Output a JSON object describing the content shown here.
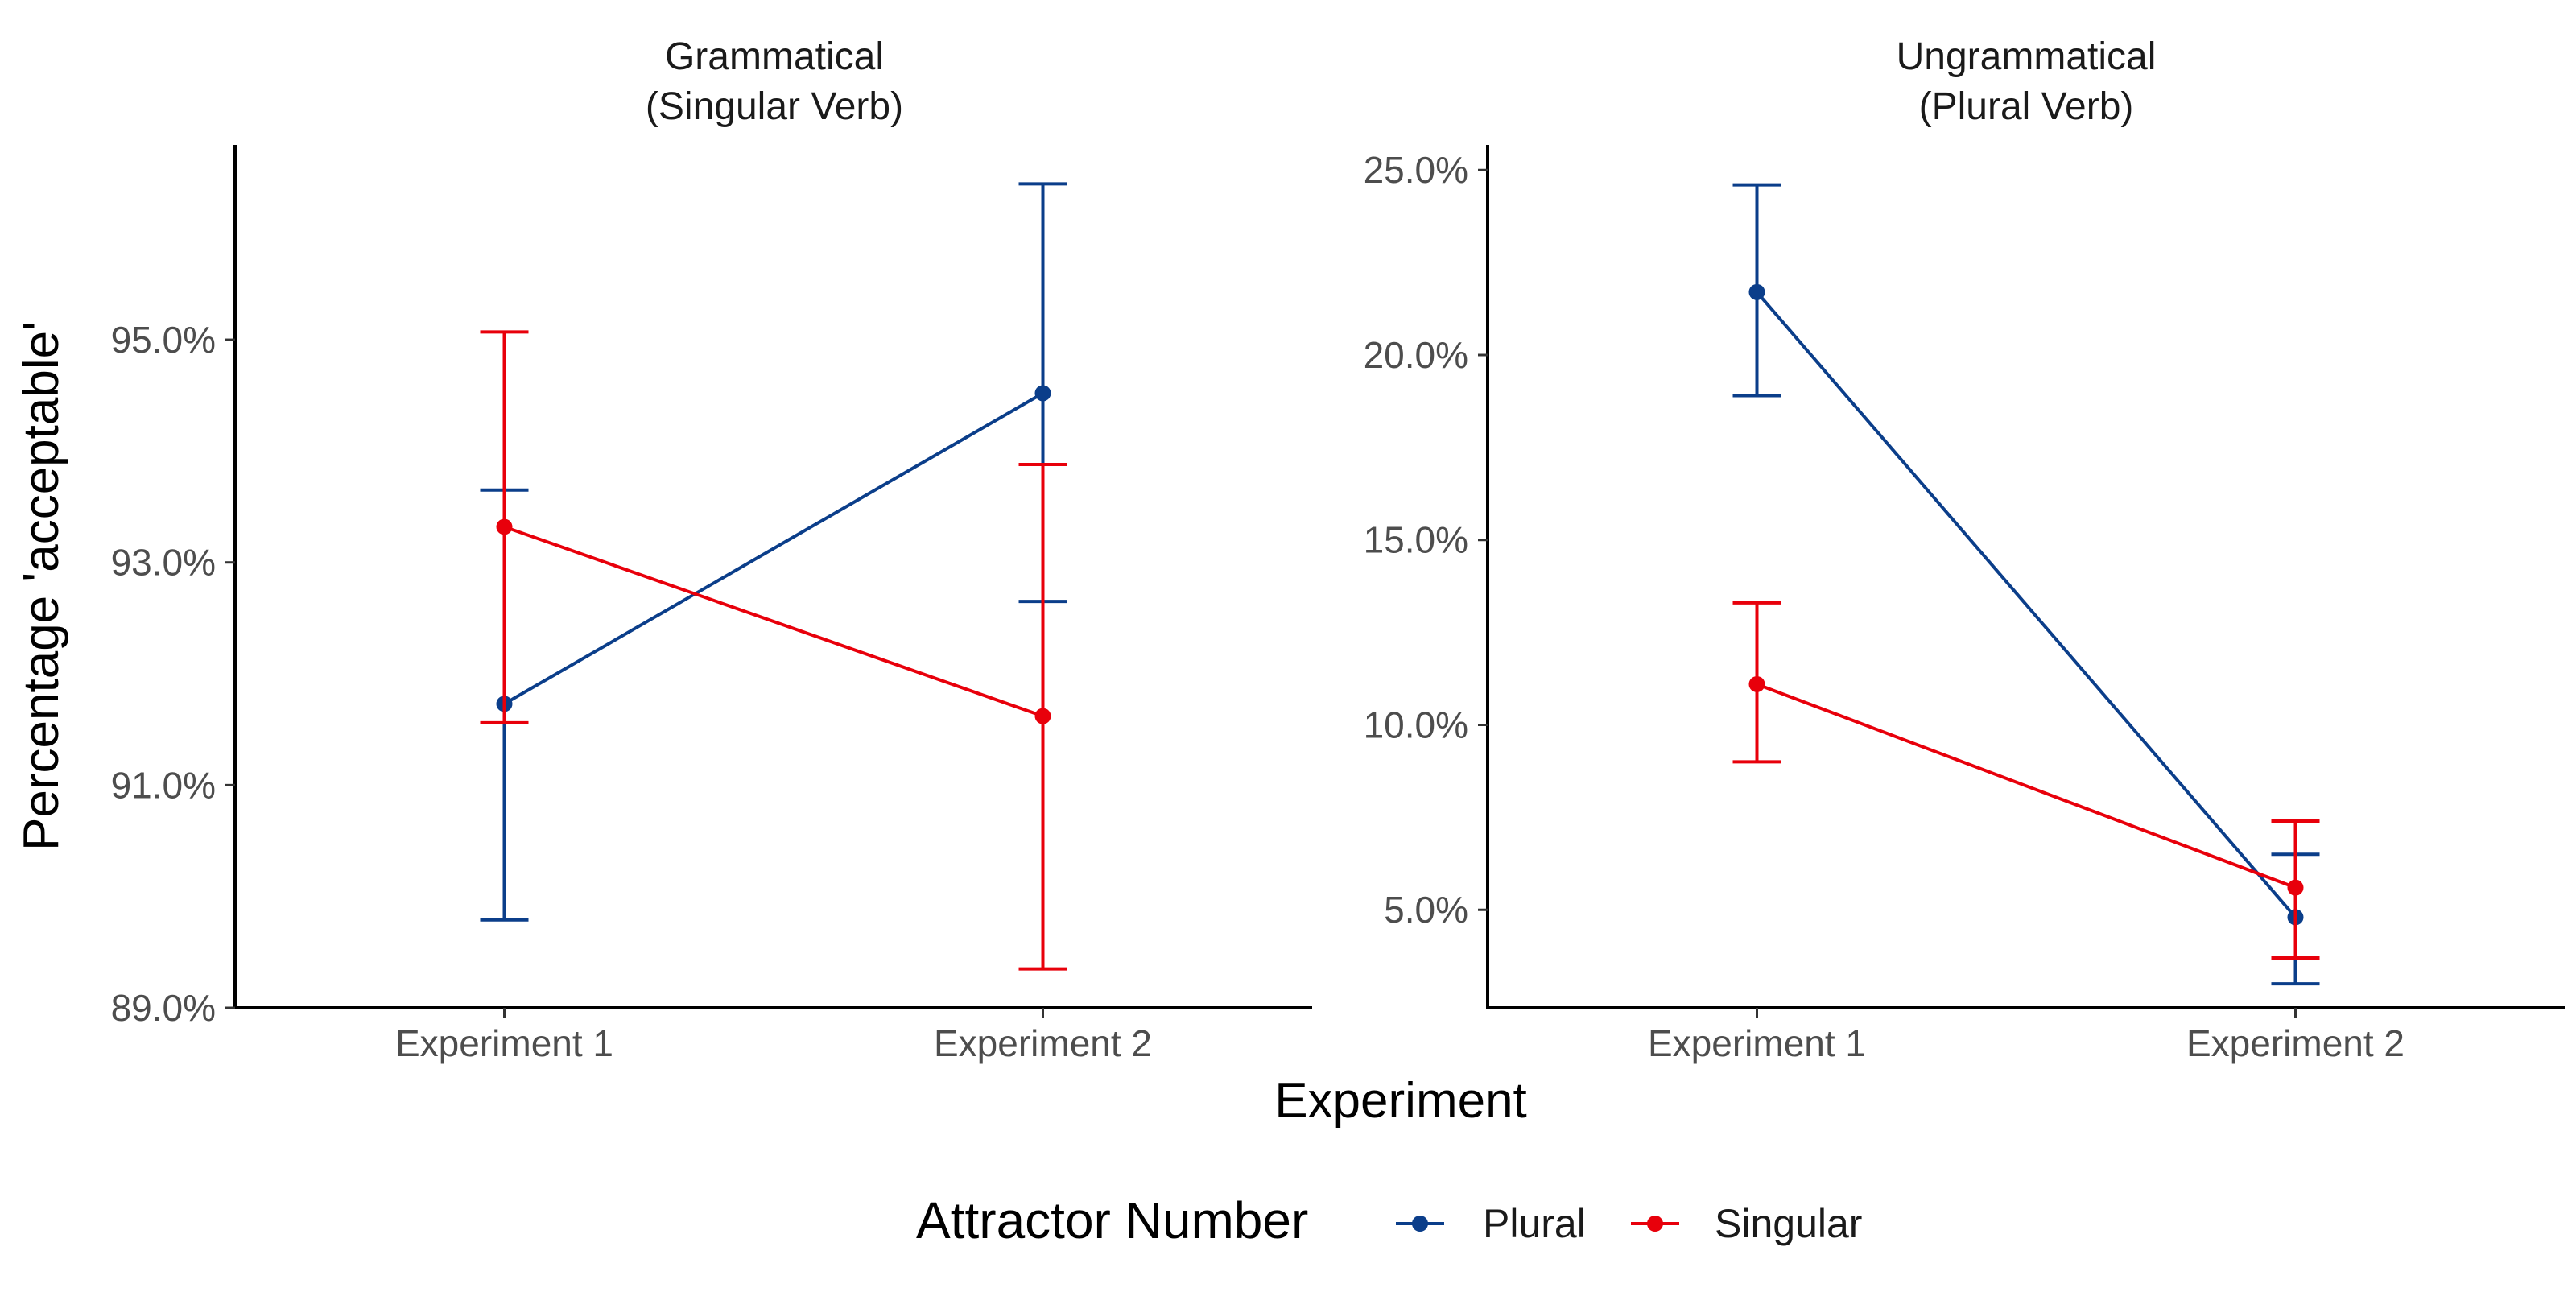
{
  "chart_data": {
    "type": "line",
    "xlabel": "Experiment",
    "ylabel": "Percentage 'acceptable'",
    "categories": [
      "Experiment 1",
      "Experiment 2"
    ],
    "legend": {
      "title": "Attractor Number",
      "position": "bottom",
      "entries": [
        "Plural",
        "Singular"
      ]
    },
    "colors": {
      "Plural": "#0b3e8a",
      "Singular": "#e8000b"
    },
    "error_bars": true,
    "grid": false,
    "panels": [
      {
        "title_line1": "Grammatical",
        "title_line2": "(Singular Verb)",
        "ylim": [
          0.89,
          0.9675
        ],
        "yticks": [
          0.89,
          0.91,
          0.93,
          0.95
        ],
        "ytick_labels": [
          "89.0%",
          "91.0%",
          "93.0%",
          "95.0%"
        ],
        "series": [
          {
            "name": "Plural",
            "values": [
              0.9173,
              0.9452
            ],
            "lower": [
              0.8979,
              0.9265
            ],
            "upper": [
              0.9365,
              0.964
            ]
          },
          {
            "name": "Singular",
            "values": [
              0.9332,
              0.9162
            ],
            "lower": [
              0.9156,
              0.8935
            ],
            "upper": [
              0.9507,
              0.9388
            ]
          }
        ]
      },
      {
        "title_line1": "Ungrammatical",
        "title_line2": "(Plural Verb)",
        "ylim": [
          0.0235,
          0.2568
        ],
        "yticks": [
          0.05,
          0.1,
          0.15,
          0.2,
          0.25
        ],
        "ytick_labels": [
          "5.0%",
          "10.0%",
          "15.0%",
          "20.0%",
          "25.0%"
        ],
        "series": [
          {
            "name": "Plural",
            "values": [
              0.217,
              0.048
            ],
            "lower": [
              0.189,
              0.03
            ],
            "upper": [
              0.246,
              0.065
            ]
          },
          {
            "name": "Singular",
            "values": [
              0.111,
              0.056
            ],
            "lower": [
              0.09,
              0.037
            ],
            "upper": [
              0.133,
              0.074
            ]
          }
        ]
      }
    ]
  }
}
